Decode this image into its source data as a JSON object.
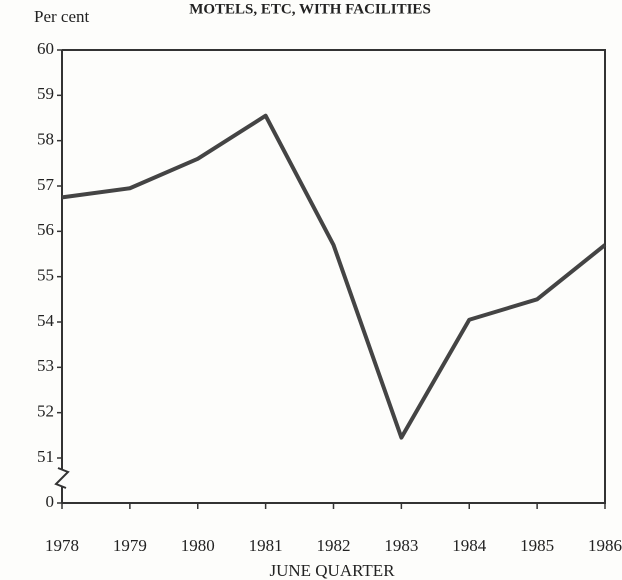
{
  "chart_data": {
    "type": "line",
    "title": "MOTELS, ETC, WITH FACILITIES",
    "y_label": "Per cent",
    "x_label": "JUNE QUARTER",
    "categories": [
      "1978",
      "1979",
      "1980",
      "1981",
      "1982",
      "1983",
      "1984",
      "1985",
      "1986"
    ],
    "values": [
      56.75,
      56.95,
      57.6,
      58.55,
      55.7,
      51.45,
      54.05,
      54.5,
      55.7
    ],
    "color": "#444444",
    "ylim": [
      51,
      60
    ],
    "yticks": [
      0,
      51,
      52,
      53,
      54,
      55,
      56,
      57,
      58,
      59,
      60
    ],
    "axis_break": true,
    "grid": false
  }
}
